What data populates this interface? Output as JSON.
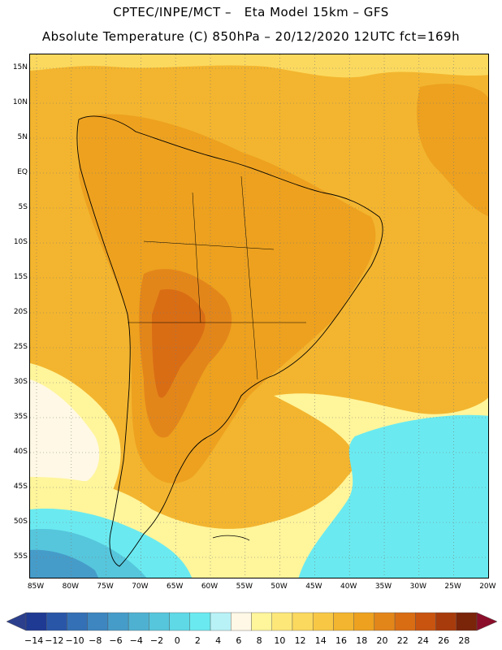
{
  "header": {
    "line1": "CPTEC/INPE/MCT –   Eta Model 15km – GFS",
    "line2": "Absolute Temperature (C) 850hPa – 20/12/2020 12UTC fct=169h"
  },
  "map": {
    "lat_labels": [
      "15N",
      "10N",
      "5N",
      "EQ",
      "5S",
      "10S",
      "15S",
      "20S",
      "25S",
      "30S",
      "35S",
      "40S",
      "45S",
      "50S",
      "55S"
    ],
    "lon_labels": [
      "85W",
      "80W",
      "75W",
      "70W",
      "65W",
      "60W",
      "55W",
      "50W",
      "45W",
      "40W",
      "35W",
      "30W",
      "25W",
      "20W"
    ],
    "lat_range": [
      15,
      -55
    ],
    "lon_range": [
      -85,
      -20
    ]
  },
  "colorbar": {
    "labels": [
      "-14",
      "-12",
      "-10",
      "-8",
      "-6",
      "-4",
      "-2",
      "0",
      "2",
      "4",
      "6",
      "8",
      "10",
      "12",
      "14",
      "16",
      "18",
      "20",
      "22",
      "24",
      "26",
      "28"
    ],
    "colors": [
      "#1f3a93",
      "#2a56a8",
      "#3470b5",
      "#3d86c0",
      "#469cc9",
      "#4fb1d2",
      "#56c6dc",
      "#5fd9e6",
      "#6aeaf0",
      "#b8f2f7",
      "#fff8e6",
      "#fff59b",
      "#fde779",
      "#fbd95e",
      "#f8c845",
      "#f3b52f",
      "#eda11f",
      "#e3861a",
      "#d96d14",
      "#c85410",
      "#a83b0c",
      "#7a240a"
    ],
    "under_color": "#2b3f8c",
    "over_color": "#8a0e2a"
  }
}
